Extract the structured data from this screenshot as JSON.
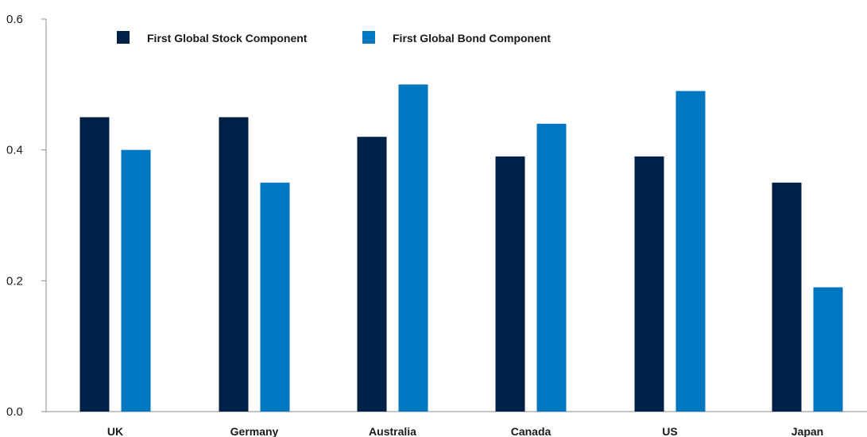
{
  "chart_data": {
    "type": "bar",
    "categories": [
      "UK",
      "Germany",
      "Australia",
      "Canada",
      "US",
      "Japan"
    ],
    "series": [
      {
        "name": "First Global Stock Component",
        "color": "#002147",
        "values": [
          0.45,
          0.45,
          0.42,
          0.39,
          0.39,
          0.35
        ]
      },
      {
        "name": "First Global Bond Component",
        "color": "#0077c0",
        "values": [
          0.4,
          0.35,
          0.5,
          0.44,
          0.49,
          0.19
        ]
      }
    ],
    "ylim": [
      0,
      0.6
    ],
    "yticks": [
      "0.0",
      "0.2",
      "0.4",
      "0.6"
    ],
    "grid": false,
    "legend_position": "top"
  }
}
